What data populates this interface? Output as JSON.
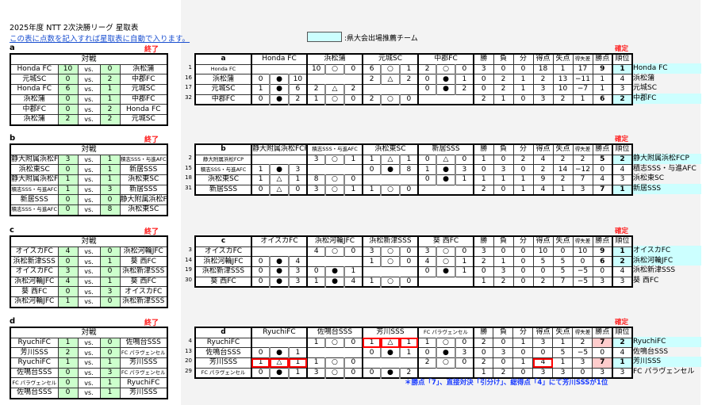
{
  "title": "2025年度 NTT  2次決勝リーグ  星取表",
  "instruction_link": "この表に点数を記入すれば星取表に自動で入ります。",
  "legend": {
    "text": ":県大会出場推薦チーム",
    "color": "#ccffff"
  },
  "colors": {
    "score_cell": "#ccffcc",
    "advance": "#ccffff",
    "tiebreak_points": "#ffcccc",
    "status": "#ff2020",
    "note": "#1a3cff"
  },
  "labels": {
    "matches_header": "対戦",
    "vs": "vs.",
    "status": "終了",
    "confirmed": "確定",
    "stat_headers": [
      "勝",
      "負",
      "分",
      "得点",
      "失点",
      "得失差",
      "勝点",
      "順位"
    ]
  },
  "groups": [
    {
      "label": "a",
      "matches": [
        [
          "Honda FC",
          "10",
          "0",
          "浜松蒲"
        ],
        [
          "元城SC",
          "0",
          "2",
          "中郡FC"
        ],
        [
          "Honda FC",
          "6",
          "1",
          "元城SC"
        ],
        [
          "浜松蒲",
          "0",
          "1",
          "中郡FC"
        ],
        [
          "中郡FC",
          "0",
          "2",
          "Honda FC"
        ],
        [
          "浜松蒲",
          "2",
          "2",
          "元城SC"
        ]
      ],
      "teams": [
        {
          "no": "1",
          "name": "Honda FC",
          "results": [
            null,
            [
              "10",
              "○",
              "0"
            ],
            [
              "6",
              "○",
              "1"
            ],
            [
              "2",
              "○",
              "0"
            ]
          ],
          "stats": [
            "3",
            "0",
            "0",
            "18",
            "1",
            "17",
            "9",
            "1"
          ]
        },
        {
          "no": "16",
          "name": "浜松蒲",
          "results": [
            [
              "0",
              "●",
              "10"
            ],
            null,
            [
              "2",
              "△",
              "2"
            ],
            [
              "0",
              "●",
              "1"
            ]
          ],
          "stats": [
            "0",
            "2",
            "1",
            "2",
            "13",
            "−11",
            "1",
            "4"
          ]
        },
        {
          "no": "17",
          "name": "元城SC",
          "results": [
            [
              "1",
              "●",
              "6"
            ],
            [
              "2",
              "△",
              "2"
            ],
            null,
            [
              "0",
              "●",
              "2"
            ]
          ],
          "stats": [
            "0",
            "2",
            "1",
            "3",
            "10",
            "−7",
            "1",
            "3"
          ]
        },
        {
          "no": "32",
          "name": "中郡FC",
          "results": [
            [
              "0",
              "●",
              "2"
            ],
            [
              "1",
              "○",
              "0"
            ],
            [
              "2",
              "○",
              "0"
            ],
            null
          ],
          "stats": [
            "2",
            "1",
            "0",
            "3",
            "2",
            "1",
            "6",
            "2"
          ]
        }
      ]
    },
    {
      "label": "b",
      "matches": [
        [
          "静大附属浜松FCP",
          "3",
          "1",
          "積志SSS・与進AFC"
        ],
        [
          "浜松東SC",
          "0",
          "1",
          "新居SSS"
        ],
        [
          "静大附属浜松FCP",
          "1",
          "1",
          "浜松東SC"
        ],
        [
          "積志SSS・与進AFC",
          "1",
          "3",
          "新居SSS"
        ],
        [
          "新居SSS",
          "0",
          "0",
          "静大附属浜松FCP"
        ],
        [
          "積志SSS・与進AFC",
          "0",
          "8",
          "浜松東SC"
        ]
      ],
      "teams": [
        {
          "no": "2",
          "name": "静大附属浜松FCP",
          "results": [
            null,
            [
              "3",
              "○",
              "1"
            ],
            [
              "1",
              "△",
              "1"
            ],
            [
              "0",
              "△",
              "0"
            ]
          ],
          "stats": [
            "1",
            "0",
            "2",
            "4",
            "2",
            "2",
            "5",
            "2"
          ]
        },
        {
          "no": "15",
          "name": "積志SSS・与進AFC",
          "results": [
            [
              "1",
              "●",
              "3"
            ],
            null,
            [
              "0",
              "●",
              "8"
            ],
            [
              "1",
              "●",
              "3"
            ]
          ],
          "stats": [
            "0",
            "3",
            "0",
            "2",
            "14",
            "−12",
            "0",
            "4"
          ]
        },
        {
          "no": "18",
          "name": "浜松東SC",
          "results": [
            [
              "1",
              "△",
              "1"
            ],
            [
              "8",
              "○",
              "0"
            ],
            null,
            [
              "0",
              "●",
              "1"
            ]
          ],
          "stats": [
            "1",
            "1",
            "1",
            "9",
            "2",
            "7",
            "4",
            "3"
          ]
        },
        {
          "no": "31",
          "name": "新居SSS",
          "results": [
            [
              "0",
              "△",
              "0"
            ],
            [
              "3",
              "○",
              "1"
            ],
            [
              "1",
              "○",
              "0"
            ],
            null
          ],
          "stats": [
            "2",
            "0",
            "1",
            "4",
            "1",
            "3",
            "7",
            "1"
          ]
        }
      ]
    },
    {
      "label": "c",
      "matches": [
        [
          "オイスカFC",
          "4",
          "0",
          "浜松河輪JFC"
        ],
        [
          "浜松新津SSS",
          "0",
          "1",
          "葵 西FC"
        ],
        [
          "オイスカFC",
          "3",
          "0",
          "浜松新津SSS"
        ],
        [
          "浜松河輪JFC",
          "4",
          "1",
          "葵 西FC"
        ],
        [
          "葵 西FC",
          "0",
          "3",
          "オイスカFC"
        ],
        [
          "浜松河輪JFC",
          "1",
          "0",
          "浜松新津SSS"
        ]
      ],
      "teams": [
        {
          "no": "3",
          "name": "オイスカFC",
          "results": [
            null,
            [
              "4",
              "○",
              "0"
            ],
            [
              "3",
              "○",
              "0"
            ],
            [
              "3",
              "○",
              "0"
            ]
          ],
          "stats": [
            "3",
            "0",
            "0",
            "10",
            "0",
            "10",
            "9",
            "1"
          ]
        },
        {
          "no": "14",
          "name": "浜松河輪JFC",
          "results": [
            [
              "0",
              "●",
              "4"
            ],
            null,
            [
              "1",
              "○",
              "0"
            ],
            [
              "4",
              "○",
              "1"
            ]
          ],
          "stats": [
            "2",
            "1",
            "0",
            "5",
            "5",
            "0",
            "6",
            "2"
          ]
        },
        {
          "no": "19",
          "name": "浜松新津SSS",
          "results": [
            [
              "0",
              "●",
              "3"
            ],
            [
              "0",
              "●",
              "1"
            ],
            null,
            [
              "0",
              "●",
              "1"
            ]
          ],
          "stats": [
            "0",
            "3",
            "0",
            "0",
            "5",
            "−5",
            "0",
            "4"
          ]
        },
        {
          "no": "30",
          "name": "葵 西FC",
          "results": [
            [
              "0",
              "●",
              "3"
            ],
            [
              "1",
              "●",
              "4"
            ],
            [
              "1",
              "○",
              "0"
            ],
            null
          ],
          "stats": [
            "1",
            "2",
            "0",
            "2",
            "7",
            "−5",
            "3",
            "3"
          ]
        }
      ]
    },
    {
      "label": "d",
      "matches": [
        [
          "RyuchiFC",
          "1",
          "0",
          "佐鳴台SSS"
        ],
        [
          "芳川SSS",
          "2",
          "0",
          "FC パラヴェンセル"
        ],
        [
          "RyuchiFC",
          "1",
          "1",
          "芳川SSS"
        ],
        [
          "佐鳴台SSS",
          "0",
          "3",
          "FC パラヴェンセル"
        ],
        [
          "FC パラヴェンセル",
          "0",
          "1",
          "RyuchiFC"
        ],
        [
          "佐鳴台SSS",
          "0",
          "1",
          "芳川SSS"
        ]
      ],
      "teams": [
        {
          "no": "4",
          "name": "RyuchiFC",
          "results": [
            null,
            [
              "1",
              "○",
              "0"
            ],
            [
              "1",
              "△",
              "1"
            ],
            [
              "1",
              "○",
              "0"
            ]
          ],
          "stats": [
            "2",
            "0",
            "1",
            "3",
            "1",
            "2",
            "7",
            "2"
          ]
        },
        {
          "no": "13",
          "name": "佐鳴台SSS",
          "results": [
            [
              "0",
              "●",
              "1"
            ],
            null,
            [
              "0",
              "●",
              "1"
            ],
            [
              "0",
              "●",
              "3"
            ]
          ],
          "stats": [
            "0",
            "3",
            "0",
            "0",
            "5",
            "−5",
            "0",
            "4"
          ]
        },
        {
          "no": "20",
          "name": "芳川SSS",
          "results": [
            [
              "1",
              "△",
              "1"
            ],
            [
              "1",
              "○",
              "0"
            ],
            null,
            [
              "2",
              "○",
              "0"
            ]
          ],
          "stats": [
            "2",
            "0",
            "1",
            "4",
            "1",
            "3",
            "7",
            "1"
          ]
        },
        {
          "no": "29",
          "name": "FC パラヴェンセル",
          "results": [
            [
              "0",
              "●",
              "1"
            ],
            [
              "3",
              "○",
              "0"
            ],
            [
              "0",
              "●",
              "2"
            ],
            null
          ],
          "stats": [
            "1",
            "2",
            "0",
            "3",
            "3",
            "0",
            "3",
            "3"
          ]
        }
      ],
      "tiebreak": {
        "head_to_head": [
          [
            0,
            2
          ],
          [
            2,
            0
          ]
        ],
        "goals_for_row": 2,
        "points_rows": [
          0,
          2
        ]
      },
      "note": "＊勝点「7」、直接対決「引分け」、総得点「4」にて芳川SSSが1位"
    }
  ]
}
